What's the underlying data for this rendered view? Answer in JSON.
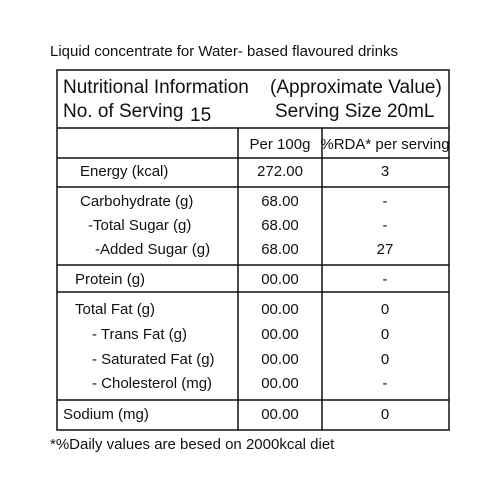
{
  "subtitle": "Liquid concentrate for Water- based flavoured drinks",
  "header": {
    "title": "Nutritional Information",
    "note": "(Approximate Value)",
    "servings_label": "No. of Serving",
    "servings": "15",
    "serving_size": "Serving Size 20mL"
  },
  "table": {
    "columns": [
      "Per 100g",
      "%RDA* per serving"
    ],
    "groups": [
      [
        [
          "Energy (kcal)",
          "272.00",
          "3"
        ]
      ],
      [
        [
          "Carbohydrate (g)",
          "68.00",
          "-"
        ],
        [
          "-Total Sugar (g)",
          "68.00",
          "-"
        ],
        [
          "-Added Sugar (g)",
          "68.00",
          "27"
        ]
      ],
      [
        [
          "Protein (g)",
          "00.00",
          "-"
        ]
      ],
      [
        [
          "Total Fat (g)",
          "00.00",
          "0"
        ],
        [
          "- Trans Fat (g)",
          "00.00",
          "0"
        ],
        [
          "- Saturated Fat (g)",
          "00.00",
          "0"
        ],
        [
          "- Cholesterol (mg)",
          "00.00",
          "-"
        ]
      ],
      [
        [
          "Sodium (mg)",
          "00.00",
          "0"
        ]
      ]
    ]
  },
  "footnote": "*%Daily values are besed on 2000kcal diet"
}
